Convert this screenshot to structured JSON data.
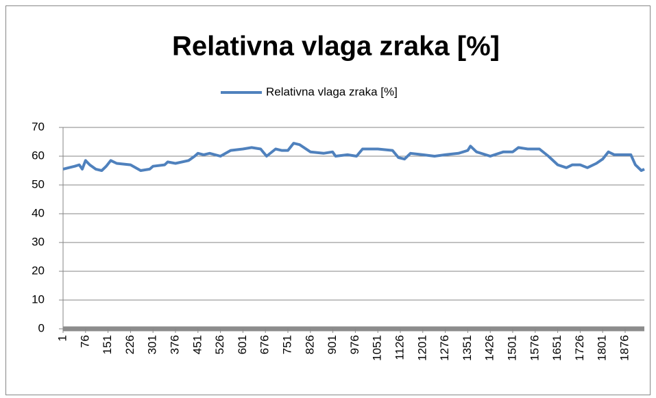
{
  "chart_data": {
    "type": "line",
    "title": "Relativna vlaga zraka [%]",
    "x": [
      1,
      20,
      40,
      55,
      65,
      76,
      90,
      110,
      130,
      145,
      160,
      180,
      226,
      260,
      290,
      301,
      340,
      350,
      376,
      420,
      440,
      451,
      470,
      490,
      526,
      560,
      601,
      630,
      660,
      680,
      710,
      730,
      751,
      770,
      790,
      826,
      870,
      900,
      910,
      950,
      980,
      1000,
      1051,
      1100,
      1120,
      1140,
      1160,
      1201,
      1240,
      1276,
      1320,
      1351,
      1360,
      1380,
      1426,
      1470,
      1501,
      1520,
      1551,
      1590,
      1620,
      1651,
      1680,
      1700,
      1726,
      1750,
      1780,
      1801,
      1820,
      1840,
      1876,
      1895,
      1910,
      1930,
      1940
    ],
    "series": [
      {
        "name": "Relativna vlaga zraka [%]",
        "color": "#4f81bd",
        "values": [
          55.5,
          56,
          56.5,
          57,
          55.5,
          58.5,
          57,
          55.5,
          55,
          56.5,
          58.5,
          57.5,
          57,
          55,
          55.5,
          56.5,
          57,
          58,
          57.5,
          58.5,
          60,
          61,
          60.5,
          61,
          60,
          62,
          62.5,
          63,
          62.5,
          60,
          62.5,
          62,
          62,
          64.5,
          64,
          61.5,
          61,
          61.5,
          60,
          60.5,
          60,
          62.5,
          62.5,
          62,
          59.5,
          59,
          61,
          60.5,
          60,
          60.5,
          61,
          62,
          63.5,
          61.5,
          60,
          61.5,
          61.5,
          63,
          62.5,
          62.5,
          60,
          57,
          56,
          57,
          57,
          56,
          57.5,
          59,
          61.5,
          60.5,
          60.5,
          60.5,
          57,
          55,
          55.5
        ]
      }
    ],
    "xlim": [
      1,
      1940
    ],
    "xticks": [
      1,
      76,
      151,
      226,
      301,
      376,
      451,
      526,
      601,
      676,
      751,
      826,
      901,
      976,
      1051,
      1126,
      1201,
      1276,
      1351,
      1426,
      1501,
      1576,
      1651,
      1726,
      1801,
      1876
    ],
    "ylim": [
      0,
      70
    ],
    "yticks": [
      0,
      10,
      20,
      30,
      40,
      50,
      60,
      70
    ],
    "grid": true,
    "legend": "top"
  }
}
